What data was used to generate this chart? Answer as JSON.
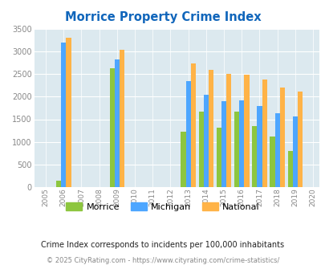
{
  "title": "Morrice Property Crime Index",
  "years": [
    2006,
    2009,
    2013,
    2014,
    2015,
    2016,
    2017,
    2018,
    2019
  ],
  "morrice": [
    130,
    2630,
    1220,
    1670,
    1310,
    1670,
    1350,
    1120,
    800
  ],
  "michigan": [
    3200,
    2830,
    2350,
    2050,
    1900,
    1920,
    1800,
    1630,
    1570
  ],
  "national": [
    3310,
    3040,
    2730,
    2600,
    2500,
    2490,
    2380,
    2200,
    2110
  ],
  "all_years": [
    2005,
    2006,
    2007,
    2008,
    2009,
    2010,
    2011,
    2012,
    2013,
    2014,
    2015,
    2016,
    2017,
    2018,
    2019,
    2020
  ],
  "ylim": [
    0,
    3500
  ],
  "yticks": [
    0,
    500,
    1000,
    1500,
    2000,
    2500,
    3000,
    3500
  ],
  "bar_width": 0.28,
  "morrice_color": "#8dc63f",
  "michigan_color": "#4da6ff",
  "national_color": "#ffb347",
  "bg_color": "#dce9ef",
  "grid_color": "#ffffff",
  "title_color": "#1166bb",
  "subtitle": "Crime Index corresponds to incidents per 100,000 inhabitants",
  "footer": "© 2025 CityRating.com - https://www.cityrating.com/crime-statistics/",
  "subtitle_color": "#222222",
  "footer_color": "#888888"
}
